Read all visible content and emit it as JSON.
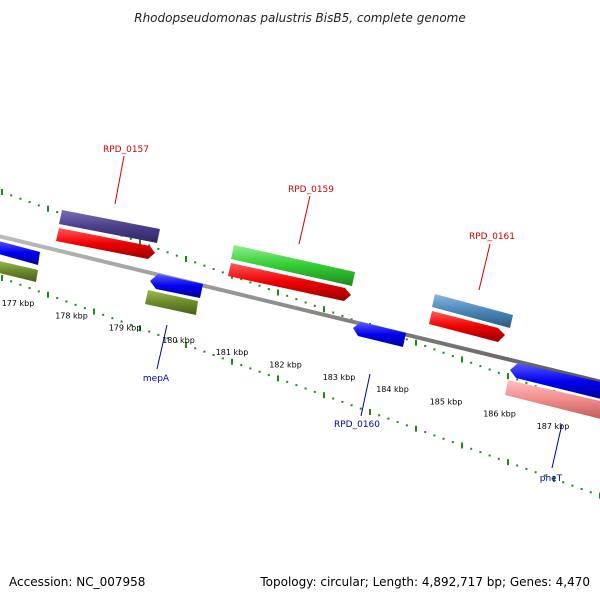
{
  "title": "Rhodopseudomonas palustris BisB5, complete genome",
  "footer": {
    "accession": "Accession: NC_007958",
    "summary": "Topology: circular; Length: 4,892,717 bp; Genes: 4,470"
  },
  "scale_labels": [
    "177 kbp",
    "178 kbp",
    "179 kbp",
    "180 kbp",
    "181 kbp",
    "182 kbp",
    "183 kbp",
    "184 kbp",
    "185 kbp",
    "186 kbp",
    "187 kbp"
  ],
  "gene_labels": {
    "rpd0157": "RPD_0157",
    "rpd0159": "RPD_0159",
    "rpd0161": "RPD_0161",
    "mepA": "mepA",
    "rpd0160": "RPD_0160",
    "pheT": "pheT"
  },
  "colors": {
    "backbone": "#8a8a8a",
    "tick": "#1a8a1a",
    "cds_red": "#e00000",
    "cds_blue": "#0a0ae0",
    "cog_purple": "#4b3f8a",
    "cog_green": "#3ccf3c",
    "cog_olive": "#6b8a2a",
    "cog_steelblue": "#4a86b8",
    "cog_pink": "#f08a8a",
    "label_red": "#cc0000",
    "label_blue": "#0000aa"
  }
}
